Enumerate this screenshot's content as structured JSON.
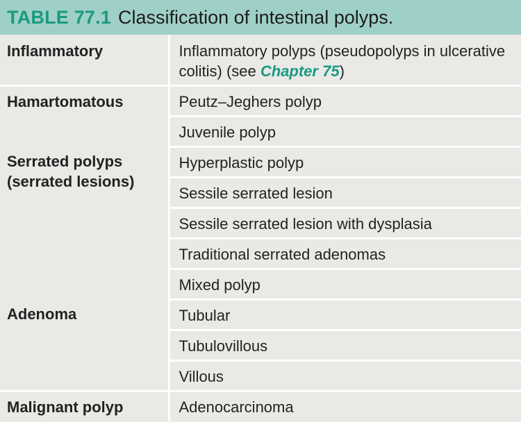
{
  "title": {
    "number": "TABLE 77.1",
    "caption": "Classification of intestinal polyps."
  },
  "inflammatory": {
    "category": "Inflammatory",
    "text_before": "Inflammatory polyps (pseudopolyps in ulcerative colitis) (see ",
    "link": "Chapter 75",
    "text_after": ")"
  },
  "groups": [
    {
      "category": "Hamartomatous",
      "items": [
        "Peutz–Jeghers polyp",
        "Juvenile polyp"
      ]
    },
    {
      "category": "Serrated polyps (serrated lesions)",
      "items": [
        "Hyperplastic polyp",
        "Sessile serrated lesion",
        "Sessile serrated lesion with dysplasia",
        "Traditional serrated adenomas",
        "Mixed polyp"
      ]
    },
    {
      "category": "Adenoma",
      "items": [
        "Tubular",
        "Tubulovillous",
        "Villous"
      ]
    },
    {
      "category": "Malignant polyp",
      "items": [
        "Adenocarcinoma"
      ]
    }
  ],
  "colors": {
    "header_bg": "#9fd0c7",
    "accent": "#1a9a82",
    "body_bg": "#e9e9e6",
    "divider": "#ffffff"
  }
}
